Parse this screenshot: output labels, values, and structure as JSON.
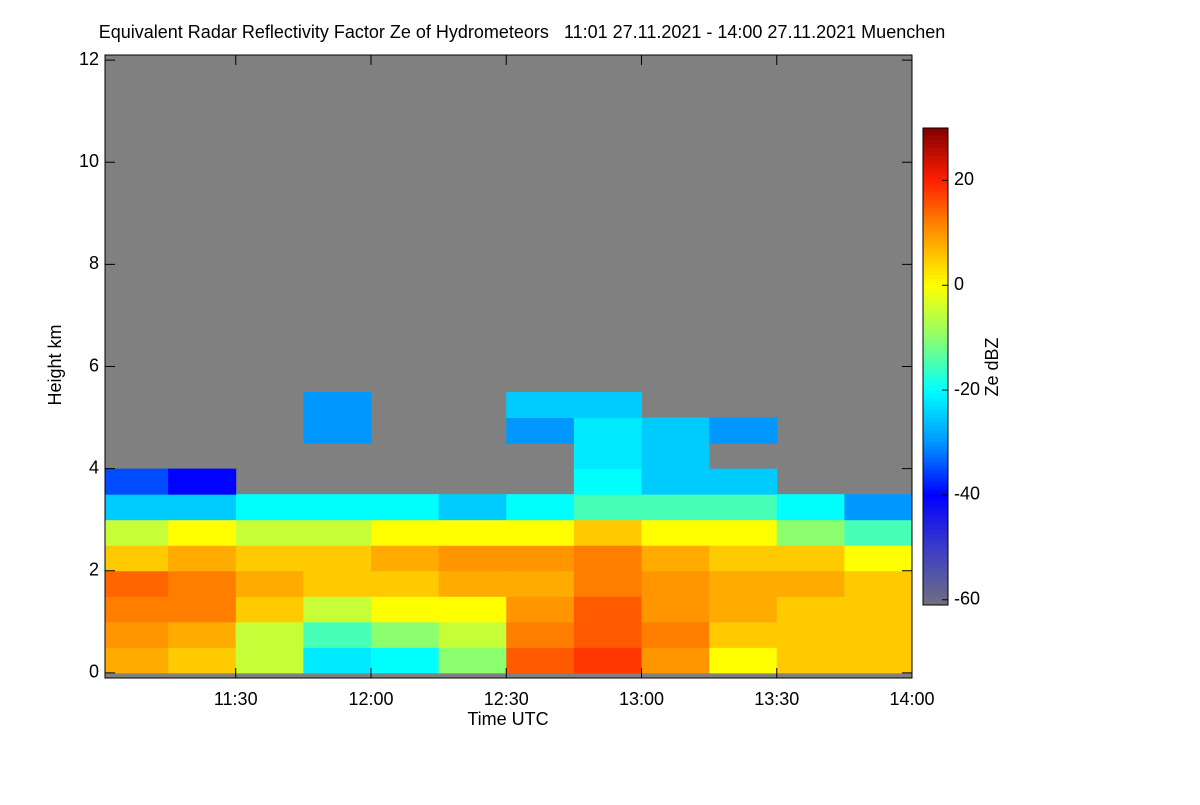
{
  "chart_data": {
    "type": "heatmap",
    "title": "Equivalent Radar Reflectivity Factor Ze of Hydrometeors   11:01 27.11.2021 - 14:00 27.11.2021 Muenchen",
    "x_label": "Time UTC",
    "y_label": "Height km",
    "colorbar_label": "Ze dBZ",
    "xlim": [
      11.0167,
      14.0
    ],
    "xticks": [
      {
        "value": 11.5,
        "label": "11:30"
      },
      {
        "value": 12.0,
        "label": "12:00"
      },
      {
        "value": 12.5,
        "label": "12:30"
      },
      {
        "value": 13.0,
        "label": "13:00"
      },
      {
        "value": 13.5,
        "label": "13:30"
      },
      {
        "value": 14.0,
        "label": "14:00"
      }
    ],
    "ylim": [
      -0.1,
      12.1
    ],
    "yticks": [
      0,
      2,
      4,
      6,
      8,
      10,
      12
    ],
    "zlim": [
      -61,
      30
    ],
    "zticks": [
      -60,
      -40,
      -20,
      0,
      20
    ],
    "background": "#808080",
    "x": [
      11.125,
      11.375,
      11.625,
      11.875,
      12.125,
      12.375,
      12.625,
      12.875,
      13.125,
      13.375,
      13.625,
      13.875
    ],
    "y": [
      0.25,
      0.75,
      1.25,
      1.75,
      2.25,
      2.75,
      3.25,
      3.75,
      4.25,
      4.75,
      5.25,
      5.75
    ],
    "z": [
      [
        8,
        5,
        -5,
        -22,
        -20,
        -10,
        15,
        18,
        10,
        0,
        5,
        5
      ],
      [
        10,
        8,
        -5,
        -15,
        -10,
        -5,
        12,
        15,
        12,
        5,
        5,
        5
      ],
      [
        12,
        12,
        5,
        -5,
        0,
        0,
        10,
        15,
        10,
        8,
        5,
        5
      ],
      [
        14,
        12,
        8,
        5,
        5,
        8,
        8,
        12,
        10,
        8,
        8,
        5
      ],
      [
        5,
        8,
        5,
        5,
        8,
        10,
        10,
        12,
        8,
        5,
        5,
        0
      ],
      [
        -5,
        0,
        -5,
        -5,
        0,
        0,
        0,
        5,
        0,
        0,
        -10,
        -15
      ],
      [
        -25,
        -25,
        -20,
        -20,
        -20,
        -25,
        -20,
        -15,
        -15,
        -15,
        -20,
        -30
      ],
      [
        -35,
        -40,
        null,
        null,
        null,
        null,
        null,
        -20,
        -25,
        -25,
        null,
        null
      ],
      [
        null,
        null,
        null,
        null,
        null,
        null,
        null,
        -22,
        -25,
        null,
        null,
        null
      ],
      [
        null,
        null,
        null,
        -30,
        null,
        null,
        -30,
        -22,
        -25,
        -30,
        null,
        null
      ],
      [
        null,
        null,
        null,
        -30,
        null,
        null,
        -25,
        -25,
        null,
        null,
        null,
        null
      ],
      [
        null,
        null,
        null,
        null,
        null,
        null,
        null,
        null,
        null,
        null,
        null,
        null
      ]
    ]
  }
}
